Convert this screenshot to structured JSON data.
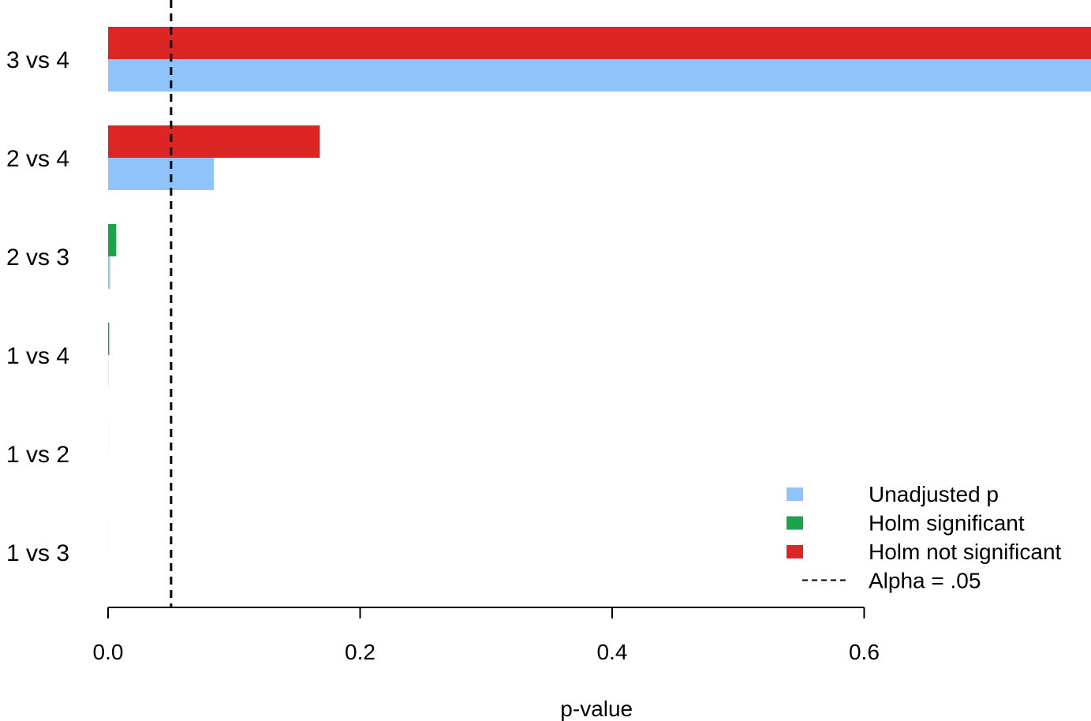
{
  "chart_data": {
    "type": "bar",
    "orientation": "horizontal",
    "categories": [
      "3 vs 4",
      "2 vs 4",
      "2 vs 3",
      "1 vs 4",
      "1 vs 2",
      "1 vs 3"
    ],
    "series": [
      {
        "name": "Unadjusted p",
        "color": "#90c3f9",
        "values": [
          0.78,
          0.084,
          0.0015,
          0.0002,
          1e-05,
          1e-05
        ]
      },
      {
        "name": "Holm significant",
        "color": "#1fa34a",
        "values": [
          null,
          null,
          0.0065,
          0.0009,
          5e-05,
          3e-05
        ]
      },
      {
        "name": "Holm not significant",
        "color": "#dc2626",
        "values": [
          0.78,
          0.168,
          null,
          null,
          null,
          null
        ]
      }
    ],
    "reference_line": {
      "name": "Alpha = .05",
      "value": 0.05,
      "style": "dashed"
    },
    "xlabel": "p-value",
    "ylabel": "",
    "title": "",
    "xlim": [
      0,
      0.78
    ],
    "xticks": [
      0,
      0.2,
      0.4,
      0.6
    ],
    "xtick_labels": [
      "0.0",
      "0.2",
      "0.4",
      "0.6"
    ],
    "grid": false,
    "legend_position": "bottom-right"
  }
}
